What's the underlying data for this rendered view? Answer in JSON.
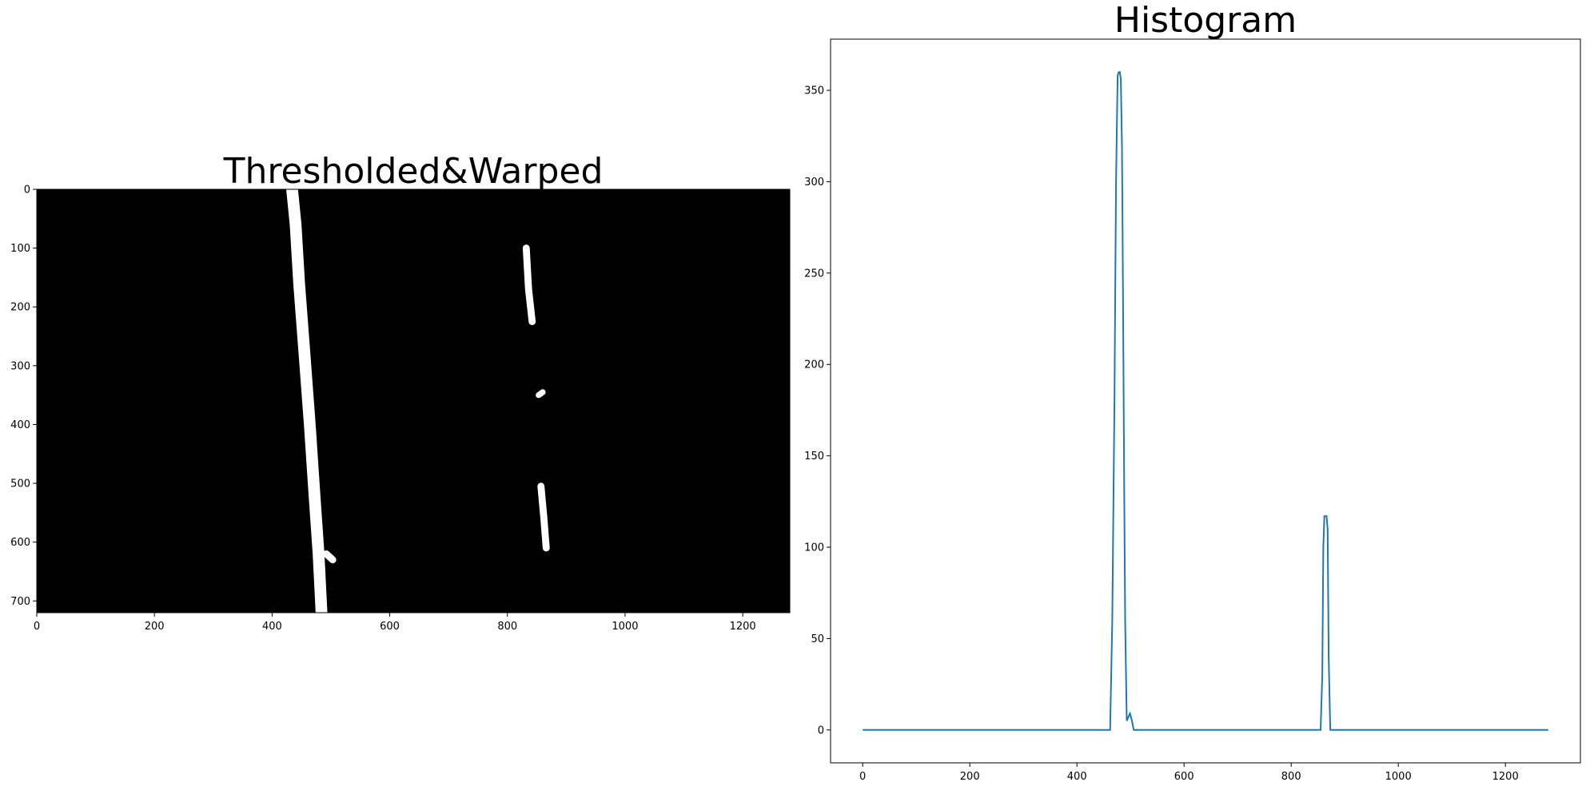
{
  "chart_data": [
    {
      "type": "image",
      "title": "Thresholded&Warped",
      "image": {
        "width": 1280,
        "height": 720,
        "background": "#000000",
        "foreground": "#ffffff"
      },
      "xlim": [
        0,
        1280
      ],
      "ylim": [
        720,
        0
      ],
      "xticks": [
        0,
        200,
        400,
        600,
        800,
        1000,
        1200
      ],
      "yticks": [
        0,
        100,
        200,
        300,
        400,
        500,
        600,
        700
      ],
      "lane_strokes": [
        {
          "name": "left-lane-line",
          "width": 20,
          "points": [
            [
              434,
              0
            ],
            [
              440,
              60
            ],
            [
              446,
              160
            ],
            [
              455,
              280
            ],
            [
              464,
              400
            ],
            [
              472,
              520
            ],
            [
              479,
              620
            ],
            [
              484,
              720
            ]
          ]
        },
        {
          "name": "left-lane-spur",
          "width": 12,
          "points": [
            [
              492,
              620
            ],
            [
              503,
              630
            ]
          ]
        },
        {
          "name": "right-lane-dash-upper",
          "width": 12,
          "points": [
            [
              832,
              100
            ],
            [
              836,
              170
            ],
            [
              842,
              225
            ]
          ]
        },
        {
          "name": "right-lane-dash-middle",
          "width": 10,
          "points": [
            [
              853,
              350
            ],
            [
              860,
              345
            ]
          ]
        },
        {
          "name": "right-lane-dash-lower",
          "width": 12,
          "points": [
            [
              857,
              505
            ],
            [
              862,
              560
            ],
            [
              866,
              610
            ]
          ]
        }
      ]
    },
    {
      "type": "line",
      "title": "Histogram",
      "xlim": [
        -60,
        1340
      ],
      "ylim": [
        -18,
        378
      ],
      "xticks": [
        0,
        200,
        400,
        600,
        800,
        1000,
        1200
      ],
      "yticks": [
        0,
        50,
        100,
        150,
        200,
        250,
        300,
        350
      ],
      "color": "#1f77b4",
      "series": [
        {
          "x": [
            0,
            462,
            466,
            470,
            473,
            476,
            478,
            480,
            482,
            484,
            486,
            488,
            490,
            493,
            496,
            499,
            502,
            504,
            506,
            509,
            855,
            858,
            860,
            862,
            866,
            868,
            870,
            873,
            1280
          ],
          "y": [
            0,
            0,
            60,
            180,
            300,
            358,
            360,
            360,
            356,
            320,
            240,
            140,
            60,
            5,
            7,
            9,
            6,
            3,
            0,
            0,
            0,
            30,
            100,
            117,
            117,
            110,
            40,
            0,
            0
          ]
        }
      ]
    }
  ]
}
